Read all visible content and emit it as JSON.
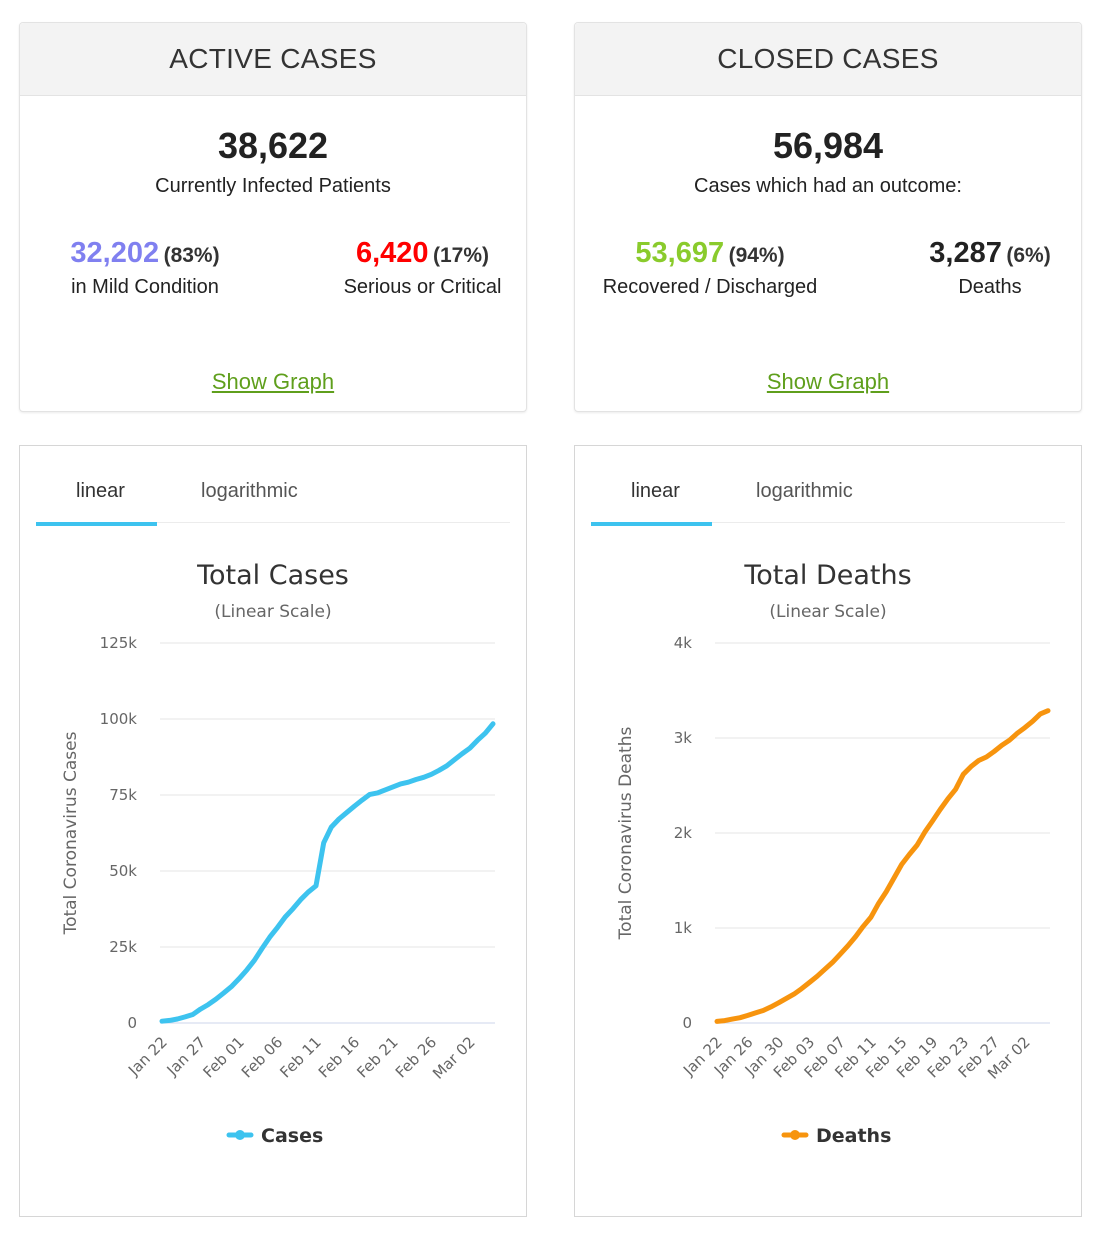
{
  "active": {
    "title": "ACTIVE CASES",
    "total": "38,622",
    "subtitle": "Currently Infected Patients",
    "left_value": "32,202",
    "left_pct_open": "(",
    "left_pct": "83",
    "left_pct_close": "%)",
    "left_label": "in Mild Condition",
    "right_value": "6,420",
    "right_pct_open": "(",
    "right_pct": "17",
    "right_pct_close": "%)",
    "right_label": "Serious or Critical",
    "show_graph": "Show Graph",
    "colors": {
      "left": "#8080f0",
      "right": "#ff0000"
    }
  },
  "closed": {
    "title": "CLOSED CASES",
    "total": "56,984",
    "subtitle": "Cases which had an outcome:",
    "left_value": "53,697",
    "left_pct_open": "(",
    "left_pct": "94",
    "left_pct_close": "%)",
    "left_label": "Recovered / Discharged",
    "right_value": "3,287",
    "right_pct_open": "(",
    "right_pct": "6",
    "right_pct_close": "%)",
    "right_label": "Deaths",
    "show_graph": "Show Graph",
    "colors": {
      "left": "#8acb2c",
      "right": "#222222"
    }
  },
  "tabs": {
    "linear": "linear",
    "log": "logarithmic"
  },
  "chart_data": [
    {
      "type": "line",
      "title": "Total Cases",
      "subtitle": "(Linear Scale)",
      "ylabel": "Total Coronavirus Cases",
      "ylim": [
        0,
        125000
      ],
      "yticks": [
        0,
        25000,
        50000,
        75000,
        100000,
        125000
      ],
      "ytick_labels": [
        "0",
        "25k",
        "50k",
        "75k",
        "100k",
        "125k"
      ],
      "xtick_labels": [
        "Jan 22",
        "Jan 27",
        "Feb 01",
        "Feb 06",
        "Feb 11",
        "Feb 16",
        "Feb 21",
        "Feb 26",
        "Mar 02"
      ],
      "xtick_index": [
        0,
        5,
        10,
        15,
        20,
        25,
        30,
        35,
        40
      ],
      "n_points": 44,
      "series": [
        {
          "name": "Cases",
          "color": "#3dc3ef",
          "values": [
            580,
            845,
            1317,
            2015,
            2800,
            4581,
            6058,
            7813,
            9823,
            11950,
            14553,
            17391,
            20630,
            24545,
            28266,
            31439,
            34876,
            37552,
            40553,
            43099,
            45134,
            59287,
            64438,
            67100,
            69197,
            71329,
            73332,
            75184,
            75700,
            76677,
            77673,
            78651,
            79205,
            80087,
            80828,
            81820,
            83112,
            84615,
            86604,
            88585,
            90443,
            93016,
            95314,
            98425
          ]
        }
      ],
      "legend": "bottom-center",
      "grid": true
    },
    {
      "type": "line",
      "title": "Total Deaths",
      "subtitle": "(Linear Scale)",
      "ylabel": "Total Coronavirus Deaths",
      "ylim": [
        0,
        4000
      ],
      "yticks": [
        0,
        1000,
        2000,
        3000,
        4000
      ],
      "ytick_labels": [
        "0",
        "1k",
        "2k",
        "3k",
        "4k"
      ],
      "xtick_labels": [
        "Jan 22",
        "Jan 26",
        "Jan 30",
        "Feb 03",
        "Feb 07",
        "Feb 11",
        "Feb 15",
        "Feb 19",
        "Feb 23",
        "Feb 27",
        "Mar 02"
      ],
      "xtick_index": [
        0,
        4,
        8,
        12,
        16,
        20,
        24,
        28,
        32,
        36,
        40
      ],
      "n_points": 44,
      "series": [
        {
          "name": "Deaths",
          "color": "#f7940e",
          "values": [
            17,
            25,
            41,
            56,
            80,
            106,
            132,
            170,
            213,
            259,
            304,
            362,
            426,
            492,
            565,
            638,
            724,
            813,
            910,
            1018,
            1115,
            1261,
            1383,
            1526,
            1669,
            1775,
            1873,
            2009,
            2126,
            2247,
            2360,
            2460,
            2618,
            2699,
            2763,
            2800,
            2858,
            2923,
            2977,
            3050,
            3110,
            3176,
            3254,
            3287
          ]
        }
      ],
      "legend": "bottom-center",
      "grid": true
    }
  ]
}
